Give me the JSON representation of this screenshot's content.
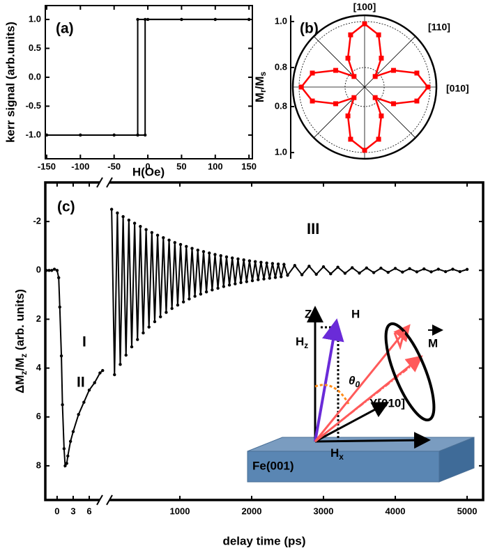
{
  "chart_data": [
    {
      "type": "line",
      "panel_label": "(a)",
      "xlabel": "H(Oe)",
      "ylabel": "kerr signal (arb.units)",
      "xlim": [
        -152,
        155
      ],
      "ylim": [
        -1.41,
        1.24
      ],
      "xticks": [
        -150,
        -100,
        -50,
        0,
        50,
        100,
        150
      ],
      "yticks": [
        {
          "value": -1,
          "label": "-1.0"
        },
        -0.5,
        {
          "value": 0,
          "label": "0.0"
        },
        0.5,
        {
          "value": 1,
          "label": "1.0"
        }
      ],
      "series": [
        {
          "color": "#000000",
          "x": [
            -150,
            -100,
            -50,
            -15,
            -4,
            -4,
            50,
            100,
            150
          ],
          "values": [
            -1,
            -1,
            -1,
            -1,
            -1,
            1,
            1,
            1,
            1
          ]
        },
        {
          "color": "#000000",
          "x": [
            150,
            100,
            50,
            0,
            -15,
            -15,
            -50,
            -100,
            -150
          ],
          "values": [
            1,
            1,
            1,
            1,
            1,
            -1,
            -1,
            -1,
            -1
          ]
        }
      ]
    },
    {
      "type": "polar",
      "panel_label": "(b)",
      "ylabel": [
        "M",
        "r",
        "/M",
        "s"
      ],
      "direction_labels": [
        "[100]",
        "[110]",
        "[010]"
      ],
      "rlim": [
        0.715,
        1.027
      ],
      "rticks": [
        {
          "value": 1,
          "label": "1.0"
        },
        0.8
      ],
      "color": "#ff0000",
      "theta": [
        0,
        15,
        30,
        45,
        60,
        75,
        90,
        105,
        120,
        135,
        150,
        165,
        180,
        195,
        210,
        225,
        240,
        255,
        270,
        285,
        300,
        315,
        330,
        345
      ],
      "values": [
        0.99,
        0.95,
        0.86,
        0.78,
        0.86,
        0.95,
        0.99,
        0.95,
        0.86,
        0.78,
        0.86,
        0.95,
        0.99,
        0.95,
        0.86,
        0.78,
        0.86,
        0.95,
        0.99,
        0.95,
        0.86,
        0.78,
        0.86,
        0.95
      ]
    },
    {
      "type": "line",
      "panel_label": "(c)",
      "xlabel": "delay time (ps)",
      "ylabel": [
        "ΔM",
        "z",
        "/M",
        "z",
        " (arb. units)"
      ],
      "annotations": [
        "I",
        "II",
        "III"
      ],
      "color": "#000000",
      "ylim": [
        9.4,
        -3.6
      ],
      "yticks": [
        -2,
        0,
        2,
        4,
        6,
        8
      ],
      "segments": [
        {
          "xlim": [
            -2.2,
            8.6
          ],
          "xticks": [
            0,
            3,
            6
          ],
          "x": [
            -2,
            -1.5,
            -1,
            -0.5,
            0,
            0.3,
            0.5,
            0.8,
            1,
            1.3,
            1.5,
            1.8,
            2,
            2.5,
            3,
            4,
            5,
            6,
            7,
            8,
            8.5
          ],
          "values": [
            0,
            0,
            0,
            -0.05,
            0,
            0.3,
            1.5,
            3.5,
            5.5,
            7.3,
            8,
            7.9,
            7.6,
            7,
            6.6,
            5.9,
            5.4,
            4.9,
            4.6,
            4.2,
            4.1
          ]
        },
        {
          "xlim": [
            -29,
            5223
          ],
          "xticks": [
            1000,
            2000,
            3000,
            4000,
            5000
          ],
          "x": [
            50,
            90,
            130,
            170,
            210,
            250,
            290,
            330,
            370,
            410,
            450,
            490,
            530,
            570,
            610,
            650,
            690,
            730,
            770,
            810,
            850,
            890,
            930,
            970,
            1010,
            1050,
            1090,
            1130,
            1170,
            1210,
            1250,
            1290,
            1330,
            1370,
            1410,
            1450,
            1490,
            1530,
            1570,
            1610,
            1650,
            1690,
            1730,
            1770,
            1810,
            1850,
            1890,
            1930,
            1970,
            2010,
            2050,
            2090,
            2130,
            2170,
            2210,
            2250,
            2290,
            2330,
            2370,
            2410,
            2450,
            2500,
            2600,
            2700,
            2800,
            2900,
            3000,
            3100,
            3200,
            3300,
            3400,
            3500,
            3600,
            3700,
            3800,
            3900,
            4000,
            4100,
            4200,
            4300,
            4400,
            4500,
            4600,
            4700,
            4800,
            4900,
            5000
          ],
          "values": [
            -2.5,
            4.27,
            -2.35,
            3.85,
            -2.2,
            3.47,
            -2.06,
            3.13,
            -1.93,
            2.83,
            -1.8,
            2.56,
            -1.67,
            2.32,
            -1.55,
            2.1,
            -1.44,
            1.9,
            -1.34,
            1.72,
            -1.24,
            1.56,
            -1.14,
            1.42,
            -1.06,
            1.29,
            -0.98,
            1.17,
            -0.9,
            1.06,
            -0.83,
            0.97,
            -0.77,
            0.88,
            -0.71,
            0.8,
            -0.65,
            0.73,
            -0.6,
            0.66,
            -0.55,
            0.6,
            -0.51,
            0.55,
            -0.47,
            0.5,
            -0.43,
            0.46,
            -0.39,
            0.42,
            -0.36,
            0.38,
            -0.33,
            0.35,
            -0.3,
            0.32,
            -0.28,
            0.29,
            -0.26,
            0.26,
            -0.24,
            0.2,
            -0.2,
            0.18,
            -0.17,
            0.16,
            -0.15,
            0.14,
            -0.13,
            0.12,
            -0.11,
            0.11,
            -0.1,
            0.09,
            -0.09,
            0.08,
            -0.08,
            0.07,
            -0.07,
            0.06,
            -0.06,
            0.06,
            -0.05,
            0.05,
            -0.05,
            0.05,
            -0.04
          ]
        }
      ],
      "inset": {
        "z": "Z",
        "h": "H",
        "hz": [
          "H",
          "z"
        ],
        "theta": [
          "θ",
          "0"
        ],
        "y": "Y[010]",
        "hx": [
          "H",
          "x"
        ],
        "m": "M",
        "substrate": "Fe(001)"
      }
    }
  ]
}
